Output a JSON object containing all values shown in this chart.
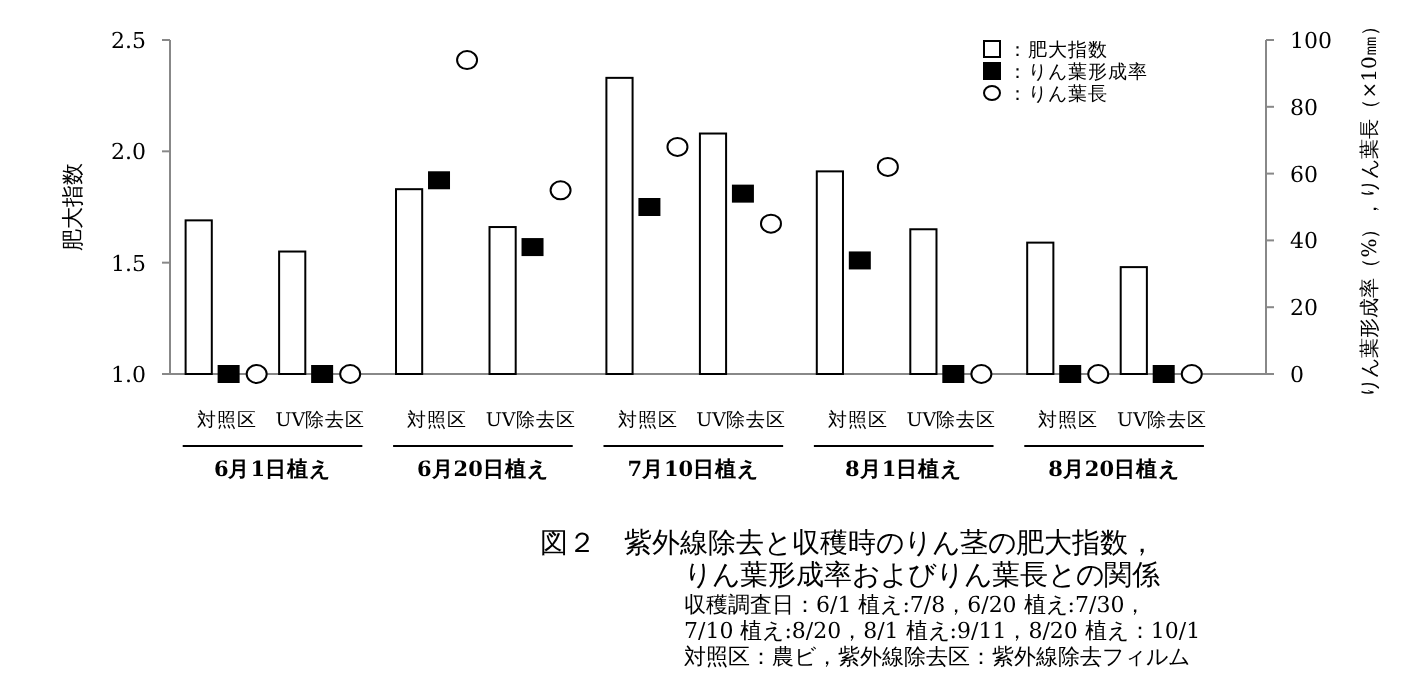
{
  "chart_data": {
    "type": "bar",
    "title": "図２　紫外線除去と収穫時のりん茎の肥大指数，",
    "subtitle": "りん葉形成率およびりん葉長との関係",
    "ylabel": "肥大指数",
    "y2label": "りん葉形成率（%），りん葉長（×10㎜）",
    "categories": [
      "対照区",
      "UV除去区",
      "対照区",
      "UV除去区",
      "対照区",
      "UV除去区",
      "対照区",
      "UV除去区",
      "対照区",
      "UV除去区"
    ],
    "series": [
      {
        "name": "：肥大指数",
        "color": "#ffffff",
        "values": [
          1.69,
          1.55,
          1.83,
          1.66,
          2.33,
          2.08,
          1.91,
          1.65,
          1.59,
          1.48
        ]
      },
      {
        "name": "：りん葉形成率",
        "type": "scatter",
        "axis": "y2",
        "marker": "square",
        "color": "#000000",
        "values": [
          0,
          0,
          58,
          38,
          50,
          54,
          34,
          0,
          0,
          0
        ]
      },
      {
        "name": "：りん葉長",
        "type": "scatter",
        "axis": "y2",
        "marker": "circle",
        "color": "#ffffff",
        "values": [
          0,
          0,
          94,
          55,
          68,
          45,
          62,
          0,
          0,
          0
        ]
      }
    ],
    "ylim": [
      1.0,
      2.5
    ],
    "yticks": [
      {
        "value": 1.0,
        "label": "1.0"
      },
      {
        "value": 1.5,
        "label": "1.5"
      },
      {
        "value": 2.0,
        "label": "2.0"
      },
      {
        "value": 2.5,
        "label": "2.5"
      }
    ],
    "y2lim": [
      0,
      100
    ],
    "y2ticks": [
      0,
      20,
      40,
      60,
      80,
      100
    ],
    "legend": "top right",
    "annotations": [
      "6月1日植え",
      "6月20日植え",
      "7月10日植え",
      "8月1日植え",
      "8月20日植え",
      "収穫調査日：6/1 植え:7/8，6/20 植え:7/30，",
      "7/10 植え:8/20，8/1 植え:9/11，8/20 植え：10/1",
      "対照区：農ビ，紫外線除去区：紫外線除去フィルム"
    ]
  }
}
